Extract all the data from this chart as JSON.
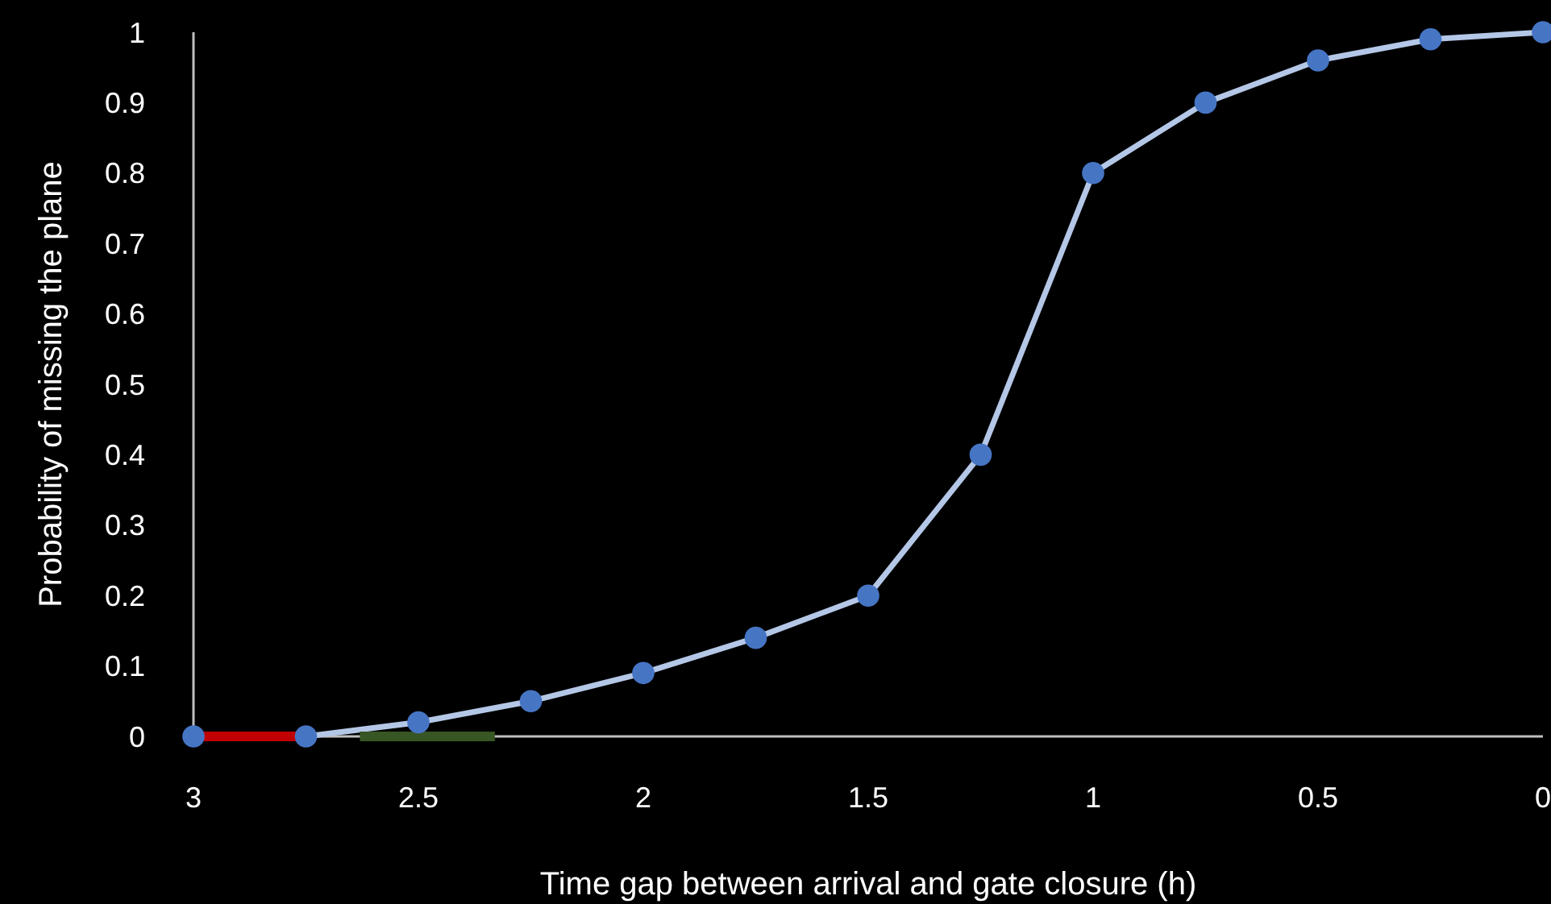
{
  "chart_data": {
    "type": "line",
    "xlabel": "Time gap between arrival and gate closure (h)",
    "ylabel": "Probability of missing the plane",
    "x": [
      3,
      2.75,
      2.5,
      2.25,
      2,
      1.75,
      1.5,
      1.25,
      1,
      0.75,
      0.5,
      0.25,
      0
    ],
    "series": [
      {
        "color": "#b4c7e7",
        "values": [
          0,
          0,
          0.02,
          0.05,
          0.09,
          0.14,
          0.2,
          0.4,
          0.8,
          0.9,
          0.96,
          0.99,
          1
        ]
      },
      {
        "color": "#c00000",
        "x": [
          3,
          2.75
        ],
        "values": [
          0,
          0
        ],
        "marker": "none"
      },
      {
        "color": "#375623",
        "x": [
          2.63,
          2.33
        ],
        "values": [
          0,
          0
        ],
        "marker": "none"
      }
    ],
    "marker": "circle",
    "line_style": "solid",
    "xlim": [
      3,
      0
    ],
    "xticks": [
      3,
      2.5,
      2,
      1.5,
      1,
      0.5,
      0
    ],
    "ylim": [
      0,
      1
    ],
    "yticks": [
      0,
      0.1,
      0.2,
      0.3,
      0.4,
      0.5,
      0.6,
      0.7,
      0.8,
      0.9,
      1
    ],
    "grid": false
  }
}
